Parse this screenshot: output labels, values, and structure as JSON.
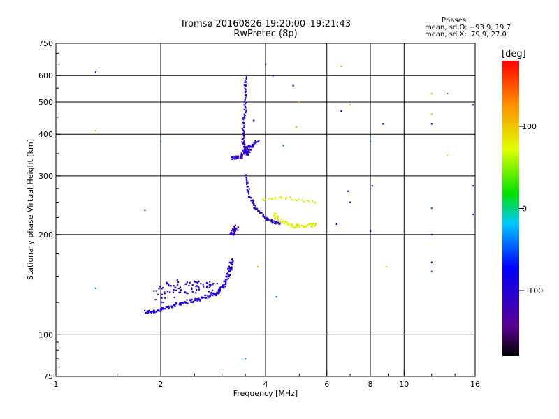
{
  "header": {
    "title_line1": "Tromsø 20160826 19:20:00–19:21:43",
    "title_line2": "RwPretec (8p)",
    "stats_heading": "Phases",
    "stats_o": "mean, sd,O: −93.9, 19.7",
    "stats_x": "mean, sd,X:  79.9, 27.0"
  },
  "colorbar": {
    "unit": "[deg]",
    "ticks": [
      "100",
      "0",
      "−100"
    ],
    "tick_values": [
      100,
      0,
      -100
    ],
    "range": [
      -180,
      180
    ]
  },
  "chart_data": {
    "type": "scatter",
    "xlabel": "Frequency [MHz]",
    "ylabel": "Stationary phase Virtual Height [km]",
    "x_scale": "log",
    "y_scale": "log",
    "xlim": [
      1,
      16
    ],
    "ylim": [
      75,
      750
    ],
    "x_ticks": [
      1,
      2,
      4,
      6,
      8,
      10,
      16
    ],
    "x_tick_labels": [
      "1",
      "2",
      "4",
      "6",
      "8",
      "10",
      "16"
    ],
    "x_minor_ticks": [
      1.5,
      2.5,
      3,
      3.5,
      5,
      7,
      9,
      12,
      14
    ],
    "y_ticks": [
      75,
      100,
      200,
      300,
      400,
      500,
      600,
      750
    ],
    "y_tick_labels": [
      "75",
      "100",
      "200",
      "300",
      "400",
      "500",
      "600",
      "750"
    ],
    "y_minor_ticks": [
      80,
      85,
      90,
      95,
      125,
      150,
      175,
      225,
      250,
      275,
      350,
      450,
      550,
      650,
      700
    ],
    "grid": true,
    "colorscale": "phase (deg) −180…180, black→purple→blue→cyan→green→yellow→orange→red",
    "segments": [
      {
        "name": "E-region trace",
        "phase": -95,
        "jitter": 0.012,
        "samples": 180,
        "points": [
          [
            1.8,
            117
          ],
          [
            1.95,
            118
          ],
          [
            2.1,
            121
          ],
          [
            2.3,
            125
          ],
          [
            2.6,
            128
          ],
          [
            2.9,
            133
          ],
          [
            3.05,
            142
          ],
          [
            3.15,
            155
          ],
          [
            3.2,
            168
          ]
        ]
      },
      {
        "name": "E-region scatter",
        "phase": -100,
        "jitter": 0.05,
        "samples": 90,
        "points": [
          [
            1.95,
            130
          ],
          [
            2.2,
            140
          ],
          [
            2.6,
            140
          ],
          [
            2.9,
            137
          ]
        ]
      },
      {
        "name": "Es cluster",
        "phase": -110,
        "jitter": 0.015,
        "samples": 30,
        "points": [
          [
            3.2,
            200
          ],
          [
            3.3,
            210
          ]
        ]
      },
      {
        "name": "F1 cusp",
        "phase": -105,
        "jitter": 0.008,
        "samples": 100,
        "points": [
          [
            3.5,
            590
          ],
          [
            3.5,
            520
          ],
          [
            3.5,
            470
          ],
          [
            3.45,
            420
          ],
          [
            3.45,
            380
          ],
          [
            3.5,
            360
          ],
          [
            3.55,
            345
          ],
          [
            3.62,
            365
          ],
          [
            3.8,
            385
          ]
        ]
      },
      {
        "name": "F1 layer",
        "phase": -110,
        "jitter": 0.01,
        "samples": 60,
        "points": [
          [
            3.2,
            340
          ],
          [
            3.4,
            342
          ],
          [
            3.5,
            360
          ],
          [
            3.7,
            372
          ]
        ]
      },
      {
        "name": "F2 lower",
        "phase": -100,
        "jitter": 0.008,
        "samples": 80,
        "points": [
          [
            3.5,
            300
          ],
          [
            3.6,
            260
          ],
          [
            3.75,
            240
          ],
          [
            4.0,
            225
          ],
          [
            4.2,
            218
          ],
          [
            4.4,
            216
          ]
        ]
      },
      {
        "name": "X-mode",
        "phase": 80,
        "jitter": 0.012,
        "samples": 70,
        "points": [
          [
            4.2,
            230
          ],
          [
            4.5,
            218
          ],
          [
            4.8,
            212
          ],
          [
            5.2,
            212
          ],
          [
            5.6,
            214
          ]
        ]
      },
      {
        "name": "X-mode upper",
        "phase": 75,
        "jitter": 0.01,
        "samples": 25,
        "points": [
          [
            3.9,
            255
          ],
          [
            4.6,
            258
          ],
          [
            5.6,
            250
          ]
        ]
      },
      {
        "name": "Scattered points",
        "phase": -80,
        "jitter": 0.0,
        "samples": 1,
        "points": [
          [
            1.3,
            615
          ],
          [
            1.8,
            237
          ],
          [
            4.0,
            650
          ],
          [
            4.2,
            600
          ],
          [
            4.8,
            560
          ],
          [
            6.9,
            270
          ],
          [
            7.0,
            250
          ],
          [
            8.0,
            205
          ],
          [
            8.1,
            280
          ],
          [
            8.7,
            430
          ],
          [
            12.0,
            430
          ],
          [
            12.0,
            165
          ],
          [
            12.0,
            200
          ],
          [
            15.8,
            490
          ],
          [
            15.8,
            280
          ],
          [
            15.8,
            230
          ],
          [
            6.6,
            470
          ],
          [
            6.4,
            215
          ],
          [
            3.7,
            440
          ]
        ]
      },
      {
        "name": "Scattered warm",
        "phase": 110,
        "jitter": 0.0,
        "samples": 1,
        "points": [
          [
            1.3,
            410
          ],
          [
            6.6,
            640
          ],
          [
            7.0,
            490
          ],
          [
            12.0,
            530
          ],
          [
            12.0,
            460
          ],
          [
            13.3,
            345
          ],
          [
            4.9,
            420
          ],
          [
            8.9,
            160
          ],
          [
            5.0,
            500
          ],
          [
            3.8,
            160
          ]
        ]
      },
      {
        "name": "Scattered cyan",
        "phase": -40,
        "jitter": 0.0,
        "samples": 1,
        "points": [
          [
            1.3,
            138
          ],
          [
            12.0,
            240
          ],
          [
            12.0,
            155
          ],
          [
            13.3,
            530
          ],
          [
            4.5,
            370
          ],
          [
            4.3,
            130
          ],
          [
            8.0,
            380
          ],
          [
            2.0,
            380
          ],
          [
            3.5,
            580
          ],
          [
            3.5,
            85
          ]
        ]
      }
    ]
  }
}
